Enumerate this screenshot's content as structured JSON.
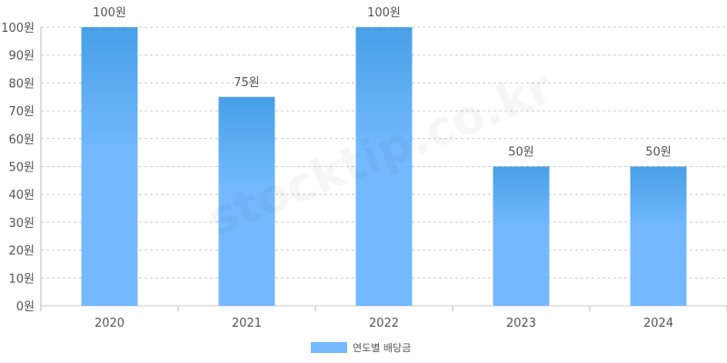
{
  "watermark": "stocktip.co.kr",
  "colors": {
    "bar": "#74b9ff",
    "bar_top": "#48a0e6",
    "grid": "#cccccc",
    "axis": "#bbbbbb",
    "text": "#555555"
  },
  "chart_data": {
    "type": "bar",
    "categories": [
      "2020",
      "2021",
      "2022",
      "2023",
      "2024"
    ],
    "series": [
      {
        "name": "연도별 배당금",
        "values": [
          100,
          75,
          100,
          50,
          50
        ]
      }
    ],
    "data_labels": [
      "100원",
      "75원",
      "100원",
      "50원",
      "50원"
    ],
    "y_ticks": [
      "0원",
      "10원",
      "20원",
      "30원",
      "40원",
      "50원",
      "60원",
      "70원",
      "80원",
      "90원",
      "100원"
    ],
    "ylim": [
      0,
      100
    ],
    "grid": true,
    "legend_position": "bottom"
  }
}
